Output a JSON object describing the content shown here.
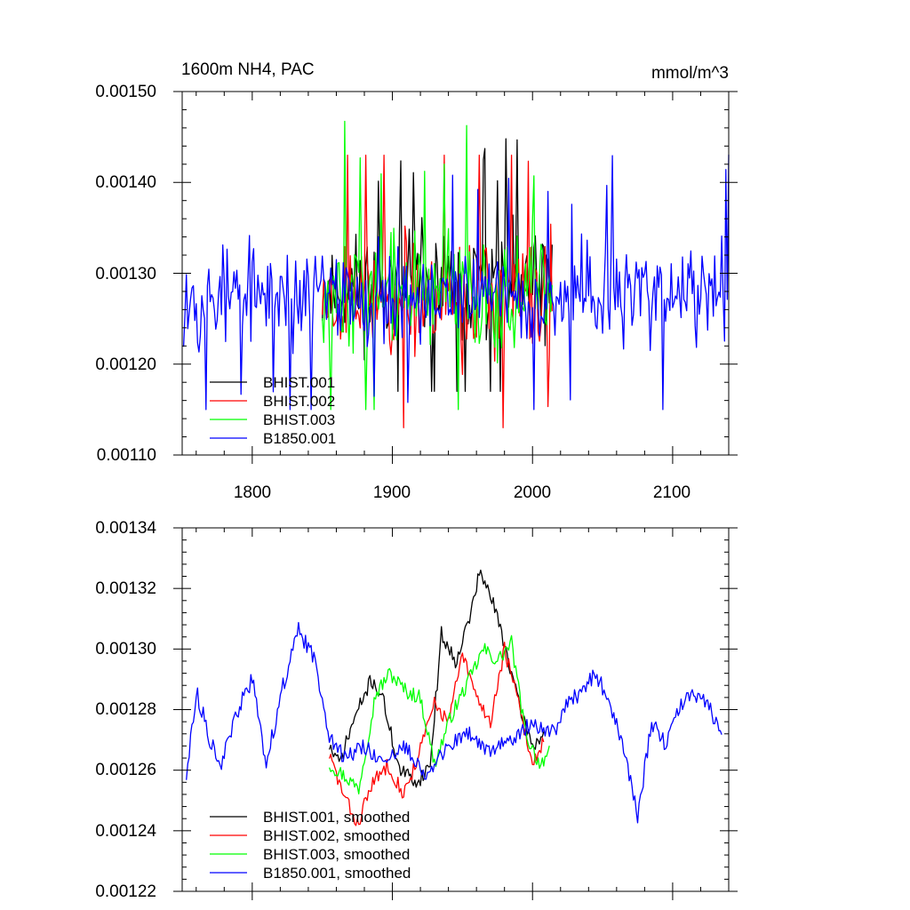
{
  "chart_data": [
    {
      "type": "line",
      "title": "1600m NH4, PAC",
      "units": "mmol/m^3",
      "xlim": [
        1750,
        2140
      ],
      "ylim": [
        0.0011,
        0.0015
      ],
      "x_ticks": [
        1800,
        1900,
        2000,
        2100
      ],
      "x_tick_labels": [
        "1800",
        "1900",
        "2000",
        "2100"
      ],
      "y_ticks": [
        0.0011,
        0.0012,
        0.0013,
        0.0014,
        0.0015
      ],
      "y_tick_labels": [
        "0.00110",
        "0.00120",
        "0.00130",
        "0.00140",
        "0.00150"
      ],
      "legend_position": "bottom-left",
      "legend_entries": [
        "BHIST.001",
        "BHIST.002",
        "BHIST.003",
        "B1850.001"
      ],
      "series": [
        {
          "name": "BHIST.001",
          "color": "#000000",
          "x_range": [
            1850,
            2014
          ],
          "mean": 0.001285,
          "amp": 5.5e-05,
          "min": 0.00117,
          "max": 0.001448,
          "seed": 11
        },
        {
          "name": "BHIST.002",
          "color": "#ff0000",
          "x_range": [
            1850,
            2014
          ],
          "mean": 0.001275,
          "amp": 6e-05,
          "min": 0.00113,
          "max": 0.00143,
          "seed": 23
        },
        {
          "name": "BHIST.003",
          "color": "#00ff00",
          "x_range": [
            1850,
            2014
          ],
          "mean": 0.00128,
          "amp": 6e-05,
          "min": 0.00115,
          "max": 0.001483,
          "seed": 37
        },
        {
          "name": "B1850.001",
          "color": "#0000ff",
          "x_range": [
            1751,
            2140
          ],
          "mean": 0.001275,
          "amp": 5e-05,
          "min": 0.00115,
          "max": 0.001448,
          "seed": 53
        }
      ]
    },
    {
      "type": "line",
      "xlim": [
        1750,
        2140
      ],
      "ylim": [
        0.00122,
        0.00134
      ],
      "x_ticks": [
        1800,
        1900,
        2000,
        2100
      ],
      "y_ticks": [
        0.00122,
        0.00124,
        0.00126,
        0.00128,
        0.0013,
        0.00132,
        0.00134
      ],
      "y_tick_labels": [
        "0.00122",
        "0.00124",
        "0.00126",
        "0.00128",
        "0.00130",
        "0.00132",
        "0.00134"
      ],
      "legend_position": "bottom-left",
      "legend_entries": [
        "BHIST.001, smoothed",
        "BHIST.002, smoothed",
        "BHIST.003, smoothed",
        "B1850.001, smoothed"
      ],
      "series": [
        {
          "name": "BHIST.001, smoothed",
          "color": "#000000",
          "anchors_x": [
            1855,
            1862,
            1872,
            1885,
            1893,
            1905,
            1918,
            1927,
            1935,
            1945,
            1955,
            1962,
            1970,
            1980,
            1990,
            2000,
            2008
          ],
          "anchors_y": [
            0.001268,
            0.001262,
            0.001276,
            0.00129,
            0.001284,
            0.00126,
            0.001256,
            0.001262,
            0.001305,
            0.001296,
            0.00131,
            0.001325,
            0.001318,
            0.001302,
            0.001282,
            0.001268,
            0.001272
          ],
          "noise": 2.5e-06,
          "seed": 71
        },
        {
          "name": "BHIST.002, smoothed",
          "color": "#ff0000",
          "anchors_x": [
            1855,
            1865,
            1875,
            1885,
            1897,
            1908,
            1918,
            1930,
            1940,
            1950,
            1960,
            1970,
            1980,
            1990,
            2000,
            2008
          ],
          "anchors_y": [
            0.001265,
            0.001252,
            0.001242,
            0.001255,
            0.001262,
            0.001252,
            0.001264,
            0.001282,
            0.001276,
            0.001298,
            0.001284,
            0.001276,
            0.0013,
            0.001282,
            0.001262,
            0.00127
          ],
          "noise": 2.5e-06,
          "seed": 83
        },
        {
          "name": "BHIST.003, smoothed",
          "color": "#00ff00",
          "anchors_x": [
            1855,
            1866,
            1876,
            1888,
            1898,
            1910,
            1920,
            1930,
            1942,
            1955,
            1965,
            1975,
            1985,
            1995,
            2005,
            2012
          ],
          "anchors_y": [
            0.001262,
            0.001258,
            0.001254,
            0.001285,
            0.001292,
            0.001286,
            0.001284,
            0.001262,
            0.001278,
            0.00129,
            0.0013,
            0.001296,
            0.001302,
            0.001272,
            0.001262,
            0.001266
          ],
          "noise": 2.5e-06,
          "seed": 97
        },
        {
          "name": "B1850.001, smoothed",
          "color": "#0000ff",
          "anchors_x": [
            1753,
            1760,
            1770,
            1778,
            1790,
            1800,
            1810,
            1822,
            1833,
            1845,
            1855,
            1865,
            1880,
            1895,
            1910,
            1925,
            1940,
            1955,
            1968,
            1985,
            2000,
            2015,
            2025,
            2035,
            2045,
            2055,
            2065,
            2075,
            2085,
            2095,
            2105,
            2115,
            2125,
            2135
          ],
          "anchors_y": [
            0.001258,
            0.001286,
            0.00127,
            0.001262,
            0.00128,
            0.00129,
            0.001262,
            0.001288,
            0.001306,
            0.001296,
            0.001272,
            0.001264,
            0.001268,
            0.001262,
            0.001268,
            0.001258,
            0.001268,
            0.001272,
            0.001266,
            0.00127,
            0.001276,
            0.001272,
            0.001282,
            0.001286,
            0.001292,
            0.001282,
            0.001268,
            0.001244,
            0.001276,
            0.001268,
            0.001282,
            0.001284,
            0.001282,
            0.001272
          ],
          "noise": 2.8e-06,
          "seed": 113
        }
      ]
    }
  ]
}
